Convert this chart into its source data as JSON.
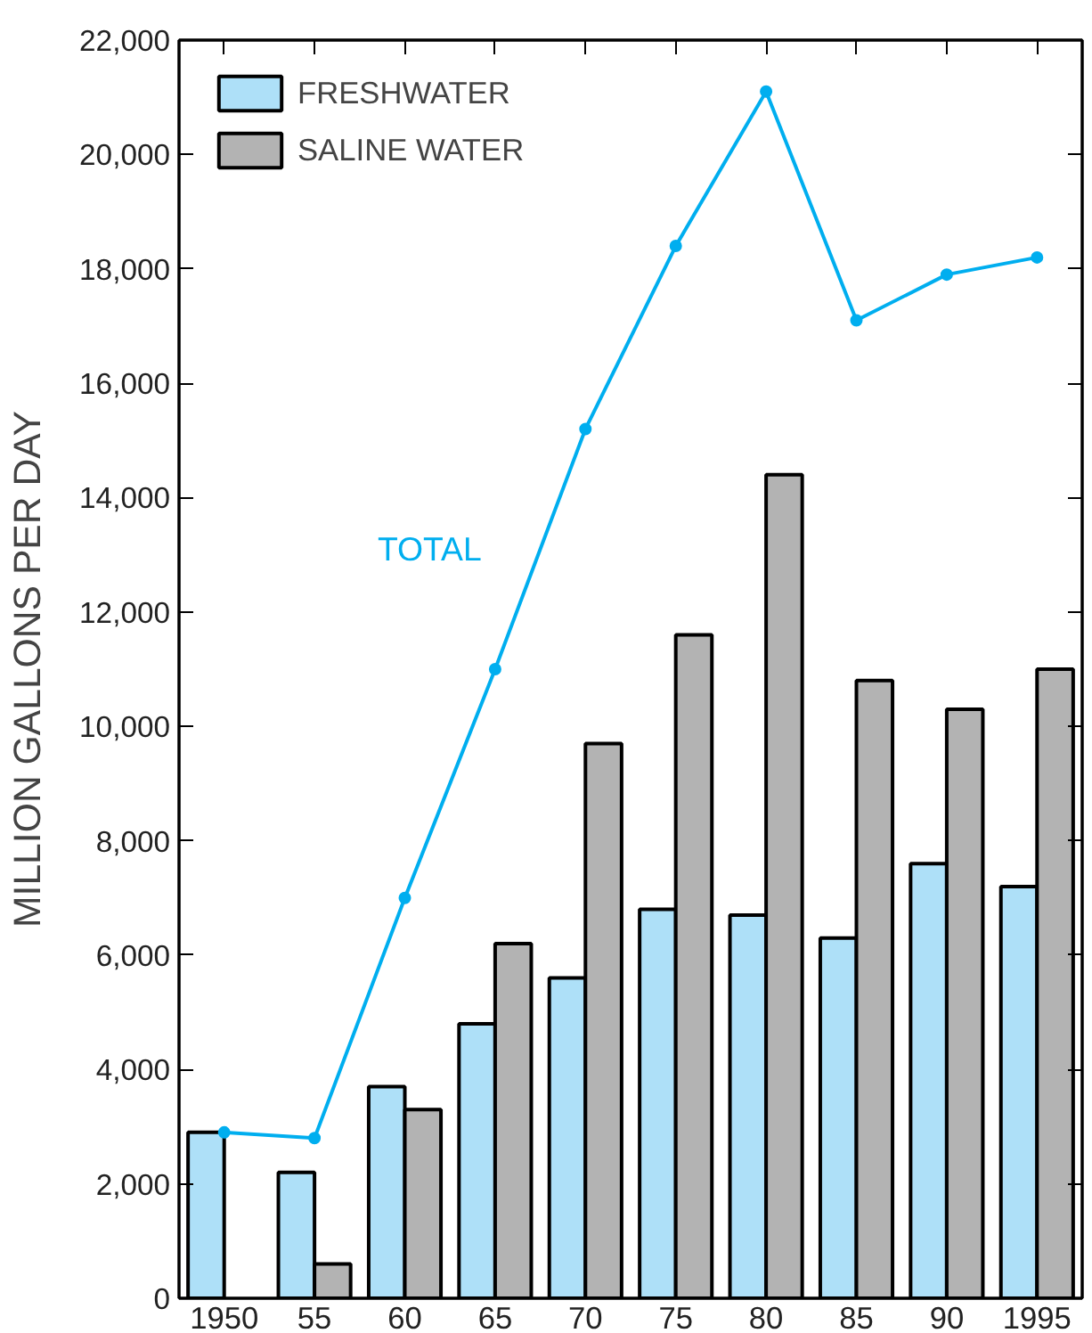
{
  "chart_data": {
    "type": "bar",
    "ylabel": "MILLION GALLONS PER DAY",
    "categories": [
      "1950",
      "55",
      "60",
      "65",
      "70",
      "75",
      "80",
      "85",
      "90",
      "1995"
    ],
    "series": [
      {
        "name": "FRESHWATER",
        "color": "#aee0f8",
        "values": [
          2900,
          2200,
          3700,
          4800,
          5600,
          6800,
          6700,
          6300,
          7600,
          7200
        ]
      },
      {
        "name": "SALINE WATER",
        "color": "#b3b3b3",
        "values": [
          null,
          600,
          3300,
          6200,
          9700,
          11600,
          14400,
          10800,
          10300,
          11000
        ]
      },
      {
        "name": "TOTAL",
        "type": "line",
        "color": "#00aeef",
        "values": [
          2900,
          2800,
          7000,
          11000,
          15200,
          18400,
          21100,
          17100,
          17900,
          18200
        ]
      }
    ],
    "ylim": [
      0,
      22000
    ],
    "yticks": [
      {
        "value": 0,
        "label": "0"
      },
      {
        "value": 2000,
        "label": "2,000"
      },
      {
        "value": 4000,
        "label": "4,000"
      },
      {
        "value": 6000,
        "label": "6,000"
      },
      {
        "value": 8000,
        "label": "8,000"
      },
      {
        "value": 10000,
        "label": "10,000"
      },
      {
        "value": 12000,
        "label": "12,000"
      },
      {
        "value": 14000,
        "label": "14,000"
      },
      {
        "value": 16000,
        "label": "16,000"
      },
      {
        "value": 18000,
        "label": "18,000"
      },
      {
        "value": 20000,
        "label": "20,000"
      },
      {
        "value": 22000,
        "label": "22,000"
      }
    ],
    "grid": false,
    "legend": "top left",
    "marker": "circle",
    "line_style": "solid"
  }
}
